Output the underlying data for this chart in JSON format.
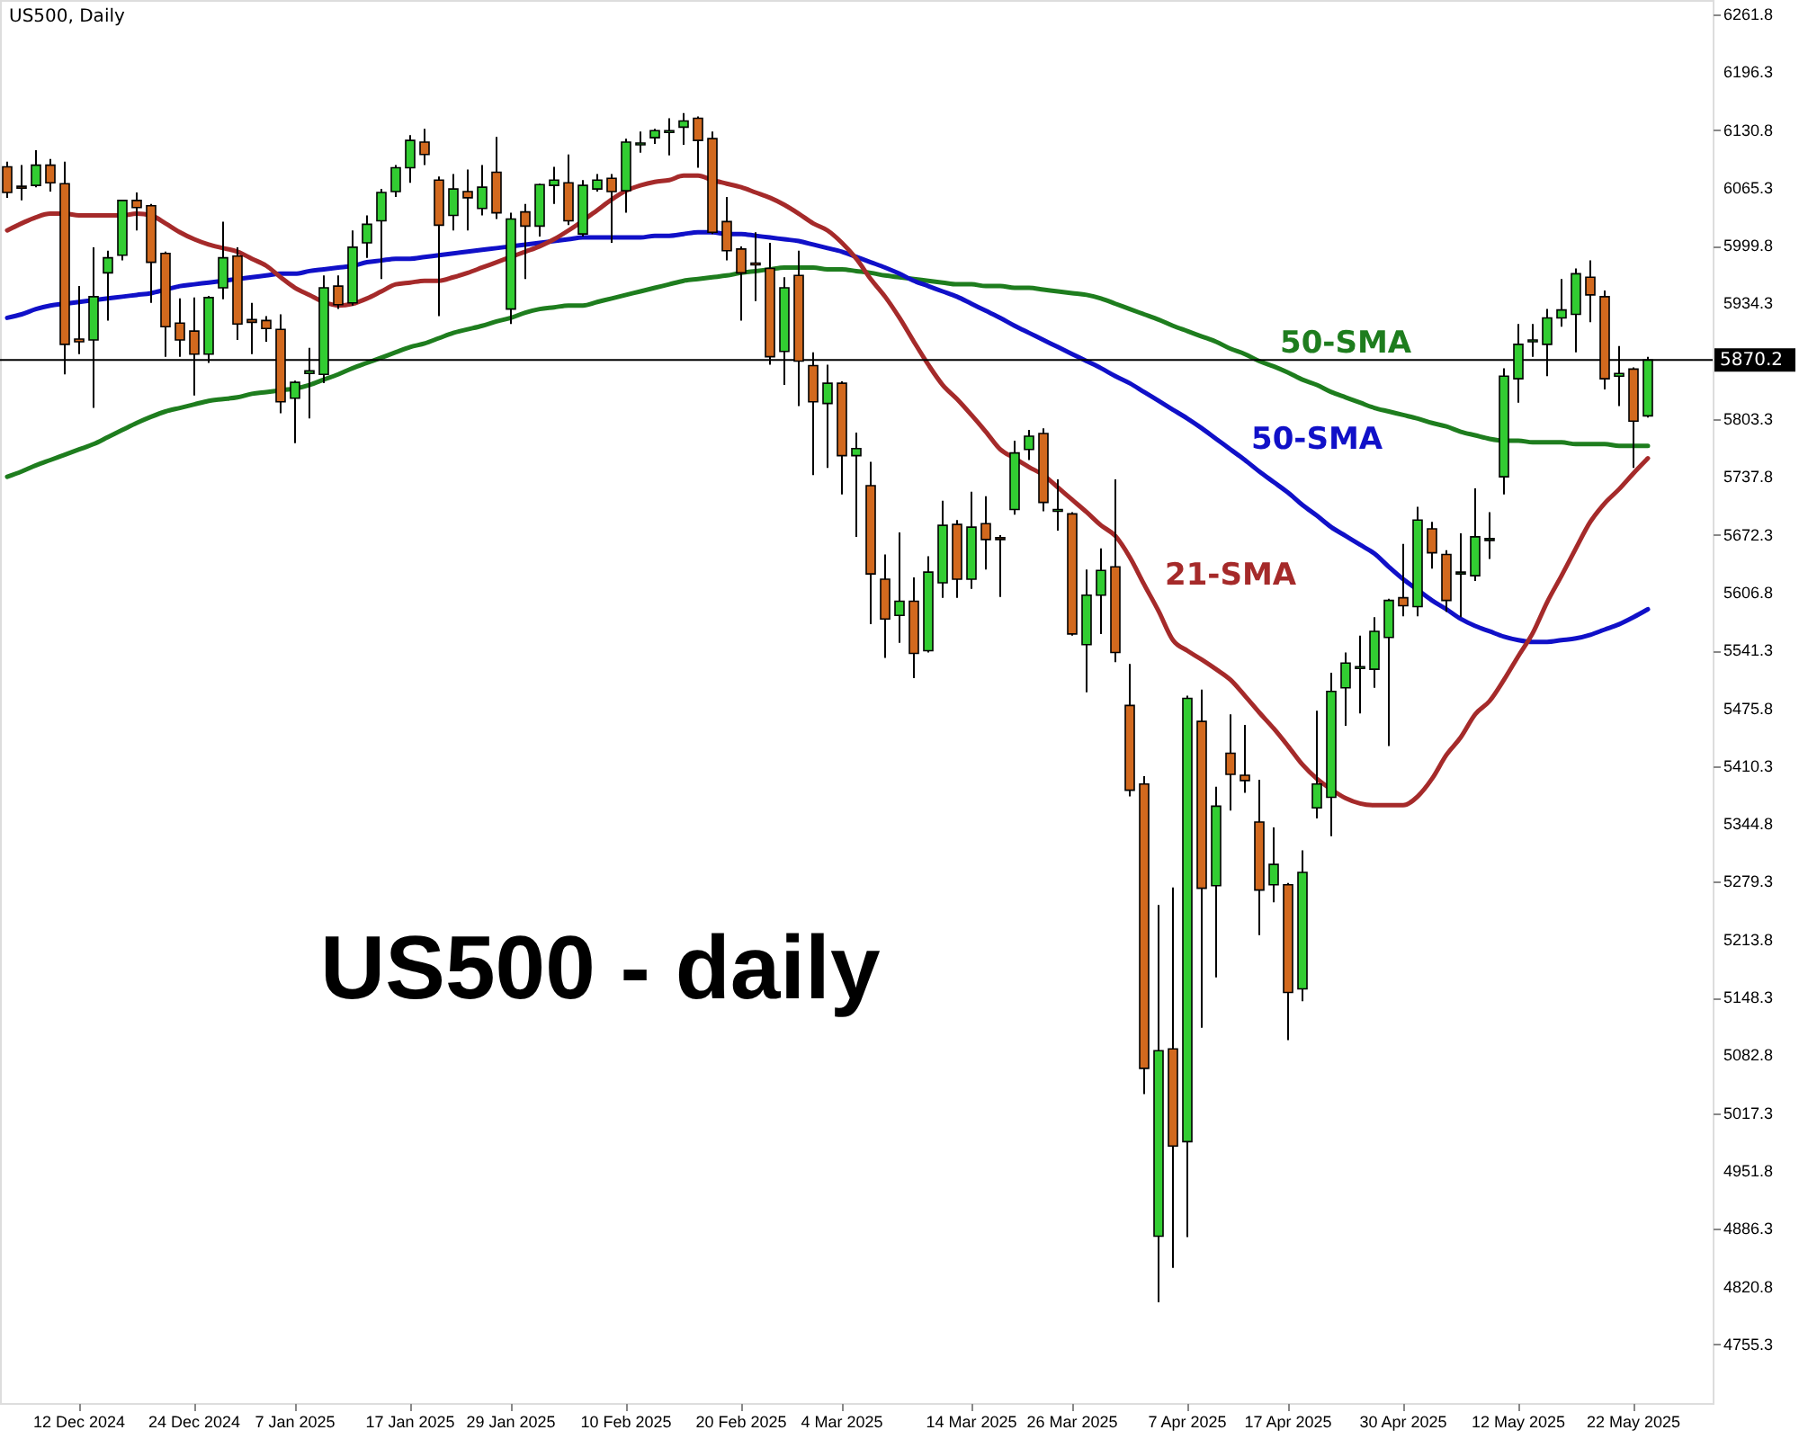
{
  "chart_data": {
    "type": "candlestick",
    "title": "US500, Daily",
    "categories": [
      null,
      null,
      null,
      null,
      null,
      "12 Dec 2024",
      null,
      null,
      null,
      null,
      null,
      null,
      null,
      "24 Dec 2024",
      null,
      null,
      null,
      null,
      null,
      null,
      "7 Jan 2025",
      null,
      null,
      null,
      null,
      null,
      null,
      null,
      "17 Jan 2025",
      null,
      null,
      null,
      null,
      null,
      null,
      "29 Jan 2025",
      null,
      null,
      null,
      null,
      null,
      null,
      null,
      "10 Feb 2025",
      null,
      null,
      null,
      null,
      null,
      null,
      null,
      "20 Feb 2025",
      null,
      null,
      null,
      null,
      null,
      null,
      "4 Mar 2025",
      null,
      null,
      null,
      null,
      null,
      null,
      null,
      null,
      "14 Mar 2025",
      null,
      null,
      null,
      null,
      null,
      null,
      "26 Mar 2025",
      null,
      null,
      null,
      null,
      null,
      null,
      null,
      "7 Apr 2025",
      null,
      null,
      null,
      null,
      null,
      null,
      "17 Apr 2025",
      null,
      null,
      null,
      null,
      null,
      null,
      null,
      "30 Apr 2025",
      null,
      null,
      null,
      null,
      null,
      null,
      null,
      "12 May 2025",
      null,
      null,
      null,
      null,
      null,
      null,
      null,
      "22 May 2025",
      null
    ],
    "ohlc": [
      [
        6089,
        6095,
        6054,
        6060
      ],
      [
        6067,
        6091,
        6051,
        6065
      ],
      [
        6068,
        6108,
        6066,
        6091
      ],
      [
        6091,
        6098,
        6061,
        6071
      ],
      [
        6070,
        6095,
        5854,
        5888
      ],
      [
        5894,
        5954,
        5877,
        5891
      ],
      [
        5893,
        5998,
        5816,
        5942
      ],
      [
        5969,
        5994,
        5915,
        5986
      ],
      [
        5989,
        6052,
        5983,
        6051
      ],
      [
        6051,
        6060,
        6017,
        6043
      ],
      [
        6045,
        6047,
        5935,
        5981
      ],
      [
        5991,
        5993,
        5874,
        5908
      ],
      [
        5912,
        5940,
        5874,
        5893
      ],
      [
        5903,
        5941,
        5830,
        5877
      ],
      [
        5877,
        5943,
        5867,
        5941
      ],
      [
        5952,
        6027,
        5939,
        5986
      ],
      [
        5988,
        5998,
        5893,
        5911
      ],
      [
        5916,
        5935,
        5877,
        5913
      ],
      [
        5915,
        5920,
        5891,
        5906
      ],
      [
        5905,
        5922,
        5810,
        5823
      ],
      [
        5827,
        5847,
        5776,
        5845
      ],
      [
        5855,
        5884,
        5804,
        5858
      ],
      [
        5854,
        5966,
        5844,
        5952
      ],
      [
        5954,
        5966,
        5928,
        5933
      ],
      [
        5935,
        6017,
        5932,
        5998
      ],
      [
        6003,
        6034,
        5986,
        6024
      ],
      [
        6028,
        6064,
        5962,
        6060
      ],
      [
        6061,
        6091,
        6055,
        6088
      ],
      [
        6088,
        6125,
        6071,
        6119
      ],
      [
        6117,
        6132,
        6091,
        6103
      ],
      [
        6074,
        6078,
        5920,
        6023
      ],
      [
        6034,
        6081,
        6017,
        6064
      ],
      [
        6061,
        6086,
        6017,
        6054
      ],
      [
        6042,
        6091,
        6034,
        6066
      ],
      [
        6083,
        6123,
        6030,
        6037
      ],
      [
        5928,
        6037,
        5911,
        6030
      ],
      [
        6038,
        6047,
        5962,
        6022
      ],
      [
        6022,
        6070,
        6010,
        6069
      ],
      [
        6068,
        6089,
        6047,
        6074
      ],
      [
        6071,
        6103,
        6023,
        6028
      ],
      [
        6013,
        6074,
        6010,
        6068
      ],
      [
        6064,
        6081,
        6061,
        6074
      ],
      [
        6076,
        6081,
        6003,
        6061
      ],
      [
        6062,
        6121,
        6037,
        6117
      ],
      [
        6114,
        6129,
        6105,
        6116
      ],
      [
        6122,
        6132,
        6115,
        6130
      ],
      [
        6128,
        6144,
        6102,
        6130
      ],
      [
        6134,
        6150,
        6114,
        6141
      ],
      [
        6144,
        6146,
        6088,
        6119
      ],
      [
        6121,
        6129,
        6013,
        6015
      ],
      [
        6027,
        6055,
        5983,
        5994
      ],
      [
        5996,
        5999,
        5915,
        5969
      ],
      [
        5980,
        6015,
        5937,
        5978
      ],
      [
        5974,
        6003,
        5865,
        5874
      ],
      [
        5880,
        5964,
        5842,
        5952
      ],
      [
        5966,
        5994,
        5818,
        5869
      ],
      [
        5864,
        5879,
        5740,
        5823
      ],
      [
        5821,
        5865,
        5748,
        5844
      ],
      [
        5844,
        5846,
        5718,
        5762
      ],
      [
        5762,
        5788,
        5670,
        5770
      ],
      [
        5728,
        5755,
        5571,
        5628
      ],
      [
        5622,
        5650,
        5533,
        5577
      ],
      [
        5581,
        5675,
        5550,
        5597
      ],
      [
        5597,
        5624,
        5510,
        5538
      ],
      [
        5541,
        5648,
        5539,
        5630
      ],
      [
        5618,
        5711,
        5601,
        5683
      ],
      [
        5684,
        5689,
        5601,
        5622
      ],
      [
        5622,
        5721,
        5611,
        5681
      ],
      [
        5685,
        5716,
        5633,
        5667
      ],
      [
        5669,
        5672,
        5602,
        5667
      ],
      [
        5701,
        5779,
        5695,
        5765
      ],
      [
        5769,
        5791,
        5757,
        5784
      ],
      [
        5787,
        5793,
        5699,
        5709
      ],
      [
        5699,
        5735,
        5677,
        5701
      ],
      [
        5696,
        5698,
        5558,
        5560
      ],
      [
        5548,
        5633,
        5494,
        5604
      ],
      [
        5604,
        5657,
        5560,
        5632
      ],
      [
        5636,
        5735,
        5528,
        5539
      ],
      [
        5479,
        5526,
        5376,
        5383
      ],
      [
        5390,
        5399,
        5039,
        5068
      ],
      [
        4878,
        5253,
        4803,
        5088
      ],
      [
        5090,
        5273,
        4842,
        4980
      ],
      [
        4985,
        5490,
        4877,
        5487
      ],
      [
        5461,
        5497,
        5114,
        5272
      ],
      [
        5275,
        5387,
        5171,
        5365
      ],
      [
        5425,
        5469,
        5360,
        5401
      ],
      [
        5400,
        5457,
        5380,
        5394
      ],
      [
        5347,
        5395,
        5219,
        5270
      ],
      [
        5276,
        5341,
        5256,
        5299
      ],
      [
        5276,
        5278,
        5100,
        5154
      ],
      [
        5158,
        5315,
        5144,
        5290
      ],
      [
        5363,
        5473,
        5351,
        5390
      ],
      [
        5375,
        5516,
        5331,
        5495
      ],
      [
        5499,
        5539,
        5456,
        5527
      ],
      [
        5521,
        5558,
        5470,
        5523
      ],
      [
        5520,
        5579,
        5499,
        5563
      ],
      [
        5556,
        5600,
        5433,
        5598
      ],
      [
        5601,
        5662,
        5580,
        5592
      ],
      [
        5591,
        5704,
        5580,
        5689
      ],
      [
        5679,
        5687,
        5634,
        5652
      ],
      [
        5650,
        5655,
        5585,
        5598
      ],
      [
        5628,
        5674,
        5579,
        5630
      ],
      [
        5626,
        5725,
        5620,
        5670
      ],
      [
        5666,
        5698,
        5645,
        5668
      ],
      [
        5738,
        5861,
        5718,
        5852
      ],
      [
        5849,
        5911,
        5822,
        5888
      ],
      [
        5891,
        5911,
        5874,
        5893
      ],
      [
        5888,
        5928,
        5852,
        5918
      ],
      [
        5918,
        5962,
        5908,
        5927
      ],
      [
        5922,
        5974,
        5879,
        5968
      ],
      [
        5964,
        5983,
        5913,
        5944
      ],
      [
        5942,
        5949,
        5837,
        5849
      ],
      [
        5852,
        5886,
        5818,
        5855
      ],
      [
        5860,
        5862,
        5748,
        5801
      ],
      [
        5807,
        5874,
        5805,
        5870.2
      ]
    ],
    "colors": [
      "#d2691e",
      "#d2691e",
      "#32cd32",
      "#d2691e",
      "#d2691e",
      "#d2691e",
      "#32cd32",
      "#32cd32",
      "#32cd32",
      "#d2691e",
      "#d2691e",
      "#d2691e",
      "#d2691e",
      "#d2691e",
      "#32cd32",
      "#32cd32",
      "#d2691e",
      "#d2691e",
      "#d2691e",
      "#d2691e",
      "#32cd32",
      "#32cd32",
      "#32cd32",
      "#d2691e",
      "#32cd32",
      "#32cd32",
      "#32cd32",
      "#32cd32",
      "#32cd32",
      "#d2691e",
      "#d2691e",
      "#32cd32",
      "#d2691e",
      "#32cd32",
      "#d2691e",
      "#32cd32",
      "#d2691e",
      "#32cd32",
      "#32cd32",
      "#d2691e",
      "#32cd32",
      "#32cd32",
      "#d2691e",
      "#32cd32",
      "#32cd32",
      "#32cd32",
      "#32cd32",
      "#32cd32",
      "#d2691e",
      "#d2691e",
      "#d2691e",
      "#d2691e",
      "#d2691e",
      "#d2691e",
      "#32cd32",
      "#d2691e",
      "#d2691e",
      "#32cd32",
      "#d2691e",
      "#32cd32",
      "#d2691e",
      "#d2691e",
      "#32cd32",
      "#d2691e",
      "#32cd32",
      "#32cd32",
      "#d2691e",
      "#32cd32",
      "#d2691e",
      "#d2691e",
      "#32cd32",
      "#32cd32",
      "#d2691e",
      "#32cd32",
      "#d2691e",
      "#32cd32",
      "#32cd32",
      "#d2691e",
      "#d2691e",
      "#d2691e",
      "#32cd32",
      "#d2691e",
      "#32cd32",
      "#d2691e",
      "#32cd32",
      "#d2691e",
      "#d2691e",
      "#d2691e",
      "#32cd32",
      "#d2691e",
      "#32cd32",
      "#32cd32",
      "#32cd32",
      "#32cd32",
      "#32cd32",
      "#32cd32",
      "#32cd32",
      "#d2691e",
      "#32cd32",
      "#d2691e",
      "#d2691e",
      "#32cd32",
      "#32cd32",
      "#32cd32",
      "#32cd32",
      "#32cd32",
      "#32cd32",
      "#32cd32",
      "#32cd32",
      "#32cd32",
      "#d2691e",
      "#d2691e",
      "#32cd32",
      "#d2691e",
      "#32cd32"
    ],
    "series": [
      {
        "name": "21-SMA",
        "type": "line",
        "color": "#a52a2a",
        "values": [
          6017,
          6025,
          6032,
          6036,
          6036,
          6034,
          6034,
          6034,
          6034,
          6036,
          6034,
          6025,
          6015,
          6007,
          6001,
          5997,
          5993,
          5985,
          5977,
          5964,
          5952,
          5944,
          5936,
          5932,
          5934,
          5940,
          5948,
          5956,
          5958,
          5960,
          5960,
          5964,
          5969,
          5975,
          5981,
          5987,
          5993,
          5999,
          6007,
          6017,
          6028,
          6040,
          6052,
          6062,
          6068,
          6072,
          6074,
          6079,
          6079,
          6074,
          6070,
          6066,
          6060,
          6054,
          6046,
          6036,
          6025,
          6017,
          6003,
          5985,
          5962,
          5942,
          5918,
          5891,
          5865,
          5842,
          5826,
          5808,
          5789,
          5769,
          5759,
          5749,
          5740,
          5726,
          5712,
          5698,
          5683,
          5671,
          5647,
          5616,
          5586,
          5553,
          5541,
          5531,
          5520,
          5508,
          5490,
          5471,
          5453,
          5433,
          5412,
          5396,
          5384,
          5374,
          5368,
          5366,
          5366,
          5366,
          5376,
          5396,
          5423,
          5443,
          5469,
          5484,
          5508,
          5535,
          5561,
          5596,
          5626,
          5657,
          5687,
          5708,
          5724,
          5742,
          5759
        ]
      },
      {
        "name": "50-SMA",
        "type": "line",
        "color": "#1010c8",
        "values": [
          5918,
          5922,
          5928,
          5932,
          5934,
          5936,
          5938,
          5940,
          5942,
          5944,
          5946,
          5950,
          5954,
          5956,
          5958,
          5960,
          5962,
          5964,
          5966,
          5968,
          5968,
          5971,
          5973,
          5975,
          5977,
          5981,
          5983,
          5985,
          5985,
          5987,
          5989,
          5991,
          5993,
          5995,
          5997,
          5999,
          6001,
          6003,
          6005,
          6007,
          6009,
          6009,
          6009,
          6009,
          6009,
          6011,
          6011,
          6013,
          6015,
          6015,
          6013,
          6013,
          6011,
          6009,
          6007,
          6005,
          6001,
          5997,
          5993,
          5987,
          5981,
          5975,
          5968,
          5960,
          5954,
          5948,
          5942,
          5934,
          5926,
          5918,
          5909,
          5901,
          5893,
          5885,
          5877,
          5869,
          5861,
          5852,
          5844,
          5834,
          5824,
          5814,
          5804,
          5793,
          5781,
          5769,
          5757,
          5744,
          5732,
          5720,
          5706,
          5694,
          5681,
          5671,
          5661,
          5651,
          5636,
          5622,
          5610,
          5598,
          5588,
          5577,
          5569,
          5563,
          5557,
          5553,
          5551,
          5551,
          5553,
          5555,
          5559,
          5565,
          5571,
          5579,
          5588
        ]
      },
      {
        "name": "50-SMA",
        "type": "line",
        "color": "#1e7d1e",
        "values": [
          5738,
          5744,
          5751,
          5757,
          5763,
          5769,
          5775,
          5783,
          5791,
          5799,
          5806,
          5812,
          5816,
          5820,
          5824,
          5826,
          5828,
          5832,
          5834,
          5836,
          5838,
          5842,
          5848,
          5854,
          5861,
          5867,
          5873,
          5879,
          5885,
          5889,
          5895,
          5901,
          5905,
          5909,
          5914,
          5918,
          5924,
          5928,
          5930,
          5932,
          5932,
          5936,
          5940,
          5944,
          5948,
          5952,
          5956,
          5960,
          5962,
          5964,
          5966,
          5969,
          5971,
          5973,
          5975,
          5975,
          5975,
          5973,
          5973,
          5971,
          5969,
          5966,
          5964,
          5962,
          5960,
          5958,
          5956,
          5956,
          5954,
          5954,
          5952,
          5952,
          5950,
          5948,
          5946,
          5944,
          5940,
          5934,
          5928,
          5922,
          5916,
          5909,
          5903,
          5897,
          5891,
          5883,
          5877,
          5869,
          5863,
          5856,
          5848,
          5842,
          5834,
          5828,
          5822,
          5816,
          5812,
          5808,
          5804,
          5799,
          5795,
          5789,
          5785,
          5781,
          5779,
          5779,
          5777,
          5777,
          5777,
          5775,
          5775,
          5775,
          5773,
          5773,
          5773
        ]
      }
    ],
    "ylim": [
      4689,
      6278
    ],
    "yticks": [
      4755.3,
      4820.8,
      4886.3,
      4951.8,
      5017.3,
      5082.8,
      5148.3,
      5213.8,
      5279.3,
      5344.8,
      5410.3,
      5475.8,
      5541.3,
      5606.8,
      5672.3,
      5737.8,
      5803.3,
      5934.3,
      5999.8,
      6065.3,
      6130.8,
      6196.3,
      6261.8
    ],
    "ref_lines": [
      {
        "axis": "y",
        "value": 5870.2,
        "label": "5870.2",
        "color": "#000000"
      }
    ],
    "annotations": [
      "US500 - daily"
    ],
    "grid": false
  }
}
